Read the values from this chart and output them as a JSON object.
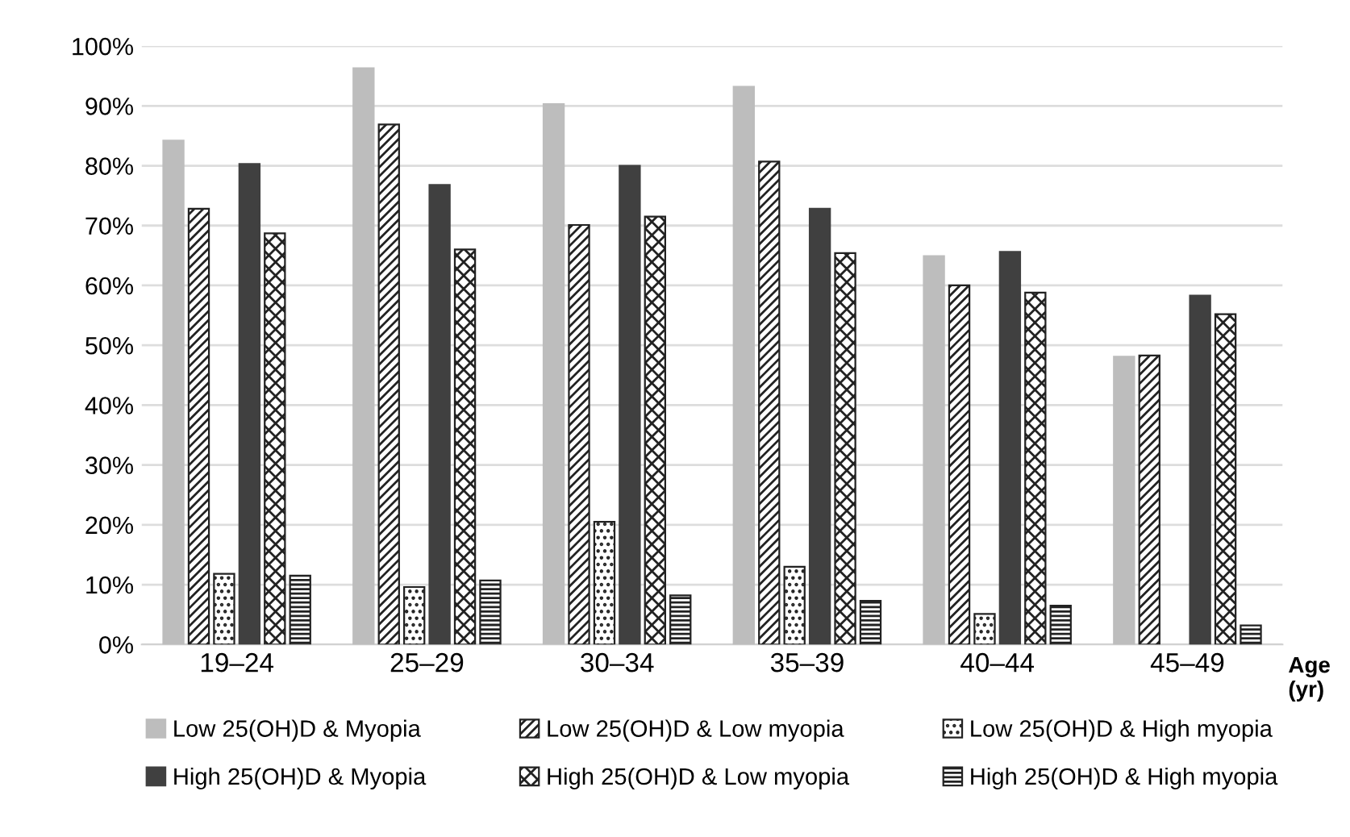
{
  "chart_data": {
    "type": "bar",
    "xlabel": "Age\n(yr)",
    "categories": [
      "19–24",
      "25–29",
      "30–34",
      "35–39",
      "40–44",
      "45–49"
    ],
    "series": [
      {
        "name": "Low 25(OH)D & Myopia",
        "color": "#bdbdbd",
        "values": [
          84.2,
          96.3,
          90.3,
          93.2,
          64.9,
          48.1
        ]
      },
      {
        "name": "Low 25(OH)D & Low myopia",
        "color": "#222222",
        "values": [
          72.8,
          86.9,
          70.1,
          80.7,
          60.0,
          48.3
        ]
      },
      {
        "name": "Low 25(OH)D & High myopia",
        "color": "#222222",
        "values": [
          11.8,
          9.6,
          20.5,
          13.0,
          5.1,
          null
        ]
      },
      {
        "name": "High 25(OH)D & Myopia",
        "color": "#404040",
        "values": [
          80.3,
          76.8,
          80.0,
          72.8,
          65.6,
          58.3
        ]
      },
      {
        "name": "High 25(OH)D & Low myopia",
        "color": "#222222",
        "values": [
          68.7,
          66.0,
          71.5,
          65.4,
          58.8,
          55.2
        ]
      },
      {
        "name": "High 25(OH)D & High myopia",
        "color": "#222222",
        "values": [
          11.5,
          10.7,
          8.2,
          7.3,
          6.5,
          3.2
        ]
      }
    ],
    "ylim": [
      0,
      100
    ],
    "yticks": [
      {
        "value": 0,
        "label": "0%"
      },
      {
        "value": 10,
        "label": "10%"
      },
      {
        "value": 20,
        "label": "20%"
      },
      {
        "value": 30,
        "label": "30%"
      },
      {
        "value": 40,
        "label": "40%"
      },
      {
        "value": 50,
        "label": "50%"
      },
      {
        "value": 60,
        "label": "60%"
      },
      {
        "value": 70,
        "label": "70%"
      },
      {
        "value": 80,
        "label": "80%"
      },
      {
        "value": 90,
        "label": "90%"
      },
      {
        "value": 100,
        "label": "100%"
      }
    ],
    "grid": "y",
    "legend": "bottom"
  }
}
